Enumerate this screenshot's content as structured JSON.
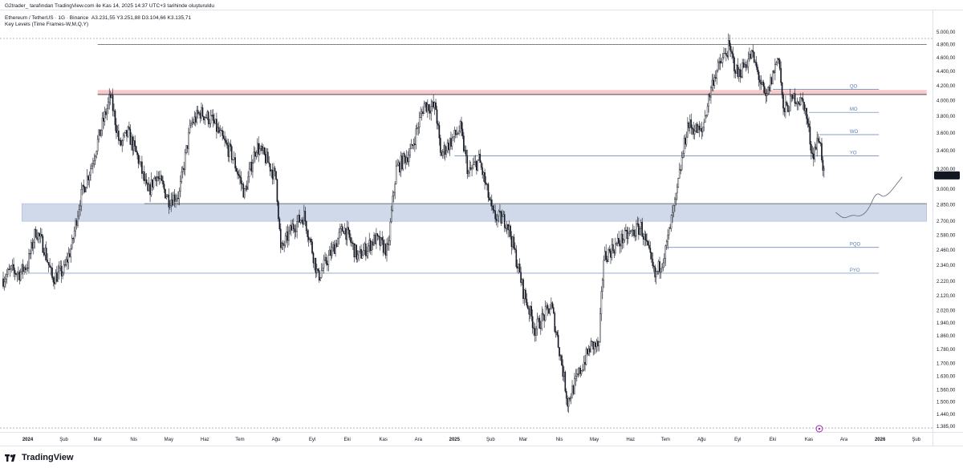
{
  "header": {
    "published_by": "G2trader_ tarafından TradingView.com ile Kas 14, 2025 14:37 UTC+3 tarihinde oluşturuldu",
    "symbol_line": "Ethereum / TetherUS · 1G · Binance",
    "ohlc": "A3.231,55  Y3.251,88  D3.104,66  K3.135,71",
    "indicator": "Key Levels (Time Frames-W,M,Q,Y)"
  },
  "brand": {
    "name": "TradingView",
    "logo": "tradingview-logo"
  },
  "colors": {
    "candle": "#131722",
    "level_line": "#5b7bb0",
    "resistance_zone": "#f7c9cc",
    "resistance_line": "#b22f3a",
    "support_zone": "#cfd9ea",
    "price_label_bg": "#131722",
    "badge": "#9c27b0"
  },
  "projection_icon": "hand-drawn-projection-curve",
  "chart_data": {
    "type": "candlestick",
    "title": "Ethereum / TetherUS · 1G · Binance",
    "xlabel": "",
    "ylabel": "",
    "y_scale": "log",
    "ylim": [
      1385,
      5000
    ],
    "x_range": [
      "2023-12-11",
      "2026-02-15"
    ],
    "grid": false,
    "y_ticks": [
      {
        "label": "5.000,00",
        "value": 5000
      },
      {
        "label": "4.800,00",
        "value": 4800
      },
      {
        "label": "4.600,00",
        "value": 4600
      },
      {
        "label": "4.400,00",
        "value": 4400
      },
      {
        "label": "4.200,00",
        "value": 4200
      },
      {
        "label": "4.000,00",
        "value": 4000
      },
      {
        "label": "3.800,00",
        "value": 3800
      },
      {
        "label": "3.600,00",
        "value": 3600
      },
      {
        "label": "3.400,00",
        "value": 3400
      },
      {
        "label": "3.200,00",
        "value": 3200
      },
      {
        "label": "3.000,00",
        "value": 3000
      },
      {
        "label": "2.850,00",
        "value": 2850
      },
      {
        "label": "2.700,00",
        "value": 2700
      },
      {
        "label": "2.580,00",
        "value": 2580
      },
      {
        "label": "2.460,00",
        "value": 2460
      },
      {
        "label": "2.340,00",
        "value": 2340
      },
      {
        "label": "2.220,00",
        "value": 2220
      },
      {
        "label": "2.120,00",
        "value": 2120
      },
      {
        "label": "2.020,00",
        "value": 2020
      },
      {
        "label": "1.940,00",
        "value": 1940
      },
      {
        "label": "1.860,00",
        "value": 1860
      },
      {
        "label": "1.780,00",
        "value": 1780
      },
      {
        "label": "1.700,00",
        "value": 1700
      },
      {
        "label": "1.630,00",
        "value": 1630
      },
      {
        "label": "1.560,00",
        "value": 1560
      },
      {
        "label": "1.500,00",
        "value": 1500
      },
      {
        "label": "1.440,00",
        "value": 1440
      },
      {
        "label": "1.385,00",
        "value": 1385
      }
    ],
    "x_ticks": [
      {
        "label": "2024",
        "date": "2024-01-01",
        "bold": true
      },
      {
        "label": "Şub",
        "date": "2024-02-01"
      },
      {
        "label": "Mar",
        "date": "2024-03-01"
      },
      {
        "label": "Nis",
        "date": "2024-04-01"
      },
      {
        "label": "May",
        "date": "2024-05-01"
      },
      {
        "label": "Haz",
        "date": "2024-06-01"
      },
      {
        "label": "Tem",
        "date": "2024-07-01"
      },
      {
        "label": "Ağu",
        "date": "2024-08-01"
      },
      {
        "label": "Eyl",
        "date": "2024-09-01"
      },
      {
        "label": "Eki",
        "date": "2024-10-01"
      },
      {
        "label": "Kas",
        "date": "2024-11-01"
      },
      {
        "label": "Ara",
        "date": "2024-12-01"
      },
      {
        "label": "2025",
        "date": "2025-01-01",
        "bold": true
      },
      {
        "label": "Şub",
        "date": "2025-02-01"
      },
      {
        "label": "Mar",
        "date": "2025-03-01"
      },
      {
        "label": "Nis",
        "date": "2025-04-01"
      },
      {
        "label": "May",
        "date": "2025-05-01"
      },
      {
        "label": "Haz",
        "date": "2025-06-01"
      },
      {
        "label": "Tem",
        "date": "2025-07-01"
      },
      {
        "label": "Ağu",
        "date": "2025-08-01"
      },
      {
        "label": "Eyl",
        "date": "2025-09-01"
      },
      {
        "label": "Eki",
        "date": "2025-10-01"
      },
      {
        "label": "Kas",
        "date": "2025-11-01"
      },
      {
        "label": "Ara",
        "date": "2025-12-01"
      },
      {
        "label": "2026",
        "date": "2026-01-01",
        "bold": true
      },
      {
        "label": "Şub",
        "date": "2026-02-01"
      }
    ],
    "last_price": {
      "label": "3.135,71",
      "value": 3135.71
    },
    "price_path": [
      [
        "2023-12-11",
        2240
      ],
      [
        "2023-12-18",
        2300
      ],
      [
        "2023-12-25",
        2280
      ],
      [
        "2024-01-01",
        2350
      ],
      [
        "2024-01-08",
        2620
      ],
      [
        "2024-01-15",
        2480
      ],
      [
        "2024-01-22",
        2240
      ],
      [
        "2024-02-01",
        2300
      ],
      [
        "2024-02-08",
        2500
      ],
      [
        "2024-02-15",
        2900
      ],
      [
        "2024-02-25",
        3250
      ],
      [
        "2024-03-05",
        3700
      ],
      [
        "2024-03-12",
        4050
      ],
      [
        "2024-03-20",
        3450
      ],
      [
        "2024-03-27",
        3600
      ],
      [
        "2024-04-05",
        3300
      ],
      [
        "2024-04-13",
        2950
      ],
      [
        "2024-04-20",
        3150
      ],
      [
        "2024-05-01",
        2900
      ],
      [
        "2024-05-10",
        2950
      ],
      [
        "2024-05-20",
        3700
      ],
      [
        "2024-05-28",
        3850
      ],
      [
        "2024-06-07",
        3750
      ],
      [
        "2024-06-17",
        3500
      ],
      [
        "2024-06-24",
        3350
      ],
      [
        "2024-07-05",
        2950
      ],
      [
        "2024-07-15",
        3450
      ],
      [
        "2024-07-24",
        3300
      ],
      [
        "2024-08-01",
        3100
      ],
      [
        "2024-08-05",
        2450
      ],
      [
        "2024-08-15",
        2650
      ],
      [
        "2024-08-25",
        2750
      ],
      [
        "2024-09-06",
        2250
      ],
      [
        "2024-09-18",
        2450
      ],
      [
        "2024-09-28",
        2650
      ],
      [
        "2024-10-10",
        2400
      ],
      [
        "2024-10-25",
        2550
      ],
      [
        "2024-11-05",
        2450
      ],
      [
        "2024-11-12",
        3200
      ],
      [
        "2024-11-25",
        3400
      ],
      [
        "2024-12-06",
        3950
      ],
      [
        "2024-12-16",
        3900
      ],
      [
        "2024-12-20",
        3350
      ],
      [
        "2025-01-06",
        3650
      ],
      [
        "2025-01-13",
        3150
      ],
      [
        "2025-01-22",
        3300
      ],
      [
        "2025-02-03",
        2750
      ],
      [
        "2025-02-15",
        2700
      ],
      [
        "2025-03-01",
        2150
      ],
      [
        "2025-03-11",
        1900
      ],
      [
        "2025-03-25",
        2050
      ],
      [
        "2025-04-08",
        1500
      ],
      [
        "2025-04-15",
        1600
      ],
      [
        "2025-04-28",
        1800
      ],
      [
        "2025-05-05",
        1800
      ],
      [
        "2025-05-09",
        2400
      ],
      [
        "2025-05-25",
        2550
      ],
      [
        "2025-06-10",
        2650
      ],
      [
        "2025-06-22",
        2250
      ],
      [
        "2025-07-01",
        2450
      ],
      [
        "2025-07-10",
        2900
      ],
      [
        "2025-07-20",
        3700
      ],
      [
        "2025-08-01",
        3600
      ],
      [
        "2025-08-11",
        4300
      ],
      [
        "2025-08-24",
        4750
      ],
      [
        "2025-09-01",
        4350
      ],
      [
        "2025-09-13",
        4650
      ],
      [
        "2025-09-25",
        4000
      ],
      [
        "2025-10-06",
        4650
      ],
      [
        "2025-10-10",
        3850
      ],
      [
        "2025-10-20",
        4050
      ],
      [
        "2025-10-28",
        3950
      ],
      [
        "2025-11-04",
        3350
      ],
      [
        "2025-11-10",
        3550
      ],
      [
        "2025-11-14",
        3135.71
      ]
    ],
    "levels": [
      {
        "price": 4800,
        "from": "2024-03-01",
        "to": "2026-02-10"
      },
      {
        "price": 4080,
        "from": "2024-03-01",
        "to": "2026-02-10",
        "zone": [
          4080,
          4140
        ],
        "style": "resistance"
      },
      {
        "price": 2860,
        "from": "2024-04-10",
        "to": "2026-02-10"
      },
      {
        "price": 2780,
        "from": "2023-12-27",
        "to": "2026-02-10",
        "zone": [
          2700,
          2860
        ],
        "style": "support"
      }
    ],
    "key_levels": [
      {
        "label": "QO",
        "price": 4150,
        "from": "2025-10-01",
        "to": "2025-12-31"
      },
      {
        "label": "MO",
        "price": 3850,
        "from": "2025-11-01",
        "to": "2025-12-31"
      },
      {
        "label": "WO",
        "price": 3580,
        "from": "2025-11-10",
        "to": "2025-12-31"
      },
      {
        "label": "YO",
        "price": 3340,
        "from": "2025-01-01",
        "to": "2025-12-31"
      },
      {
        "label": "PQO",
        "price": 2480,
        "from": "2025-07-01",
        "to": "2025-12-31"
      },
      {
        "label": "PYO",
        "price": 2280,
        "from": "2024-01-01",
        "to": "2025-12-31"
      }
    ],
    "projection": [
      [
        "2025-11-24",
        2780
      ],
      [
        "2025-12-01",
        2720
      ],
      [
        "2025-12-08",
        2760
      ],
      [
        "2025-12-15",
        2740
      ],
      [
        "2025-12-22",
        2800
      ],
      [
        "2025-12-29",
        2980
      ],
      [
        "2026-01-05",
        2900
      ],
      [
        "2026-01-20",
        3120
      ]
    ]
  }
}
